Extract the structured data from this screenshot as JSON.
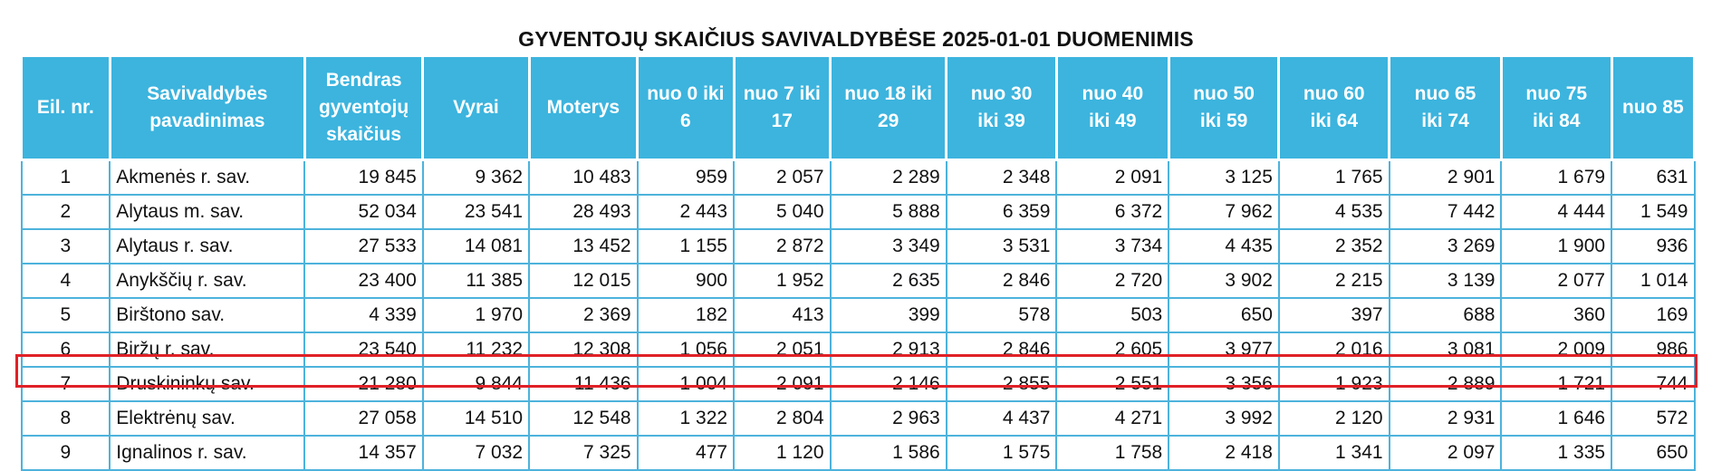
{
  "title": "GYVENTOJŲ SKAIČIUS SAVIVALDYBĖSE 2025-01-01 DUOMENIMIS",
  "colors": {
    "header_bg": "#3cb4de",
    "grid": "#4db3dc",
    "highlight": "#e02127"
  },
  "headers": [
    [
      "Eil. nr."
    ],
    [
      "Savivaldybės",
      "pavadinimas"
    ],
    [
      "Bendras",
      "gyventojų",
      "skaičius"
    ],
    [
      "Vyrai"
    ],
    [
      "Moterys"
    ],
    [
      "nuo 0 iki",
      "6"
    ],
    [
      "nuo 7 iki",
      "17"
    ],
    [
      "nuo 18 iki",
      "29"
    ],
    [
      "nuo 30",
      "iki 39"
    ],
    [
      "nuo 40",
      "iki 49"
    ],
    [
      "nuo 50",
      "iki 59"
    ],
    [
      "nuo 60",
      "iki 64"
    ],
    [
      "nuo 65",
      "iki 74"
    ],
    [
      "nuo 75",
      "iki 84"
    ],
    [
      "nuo 85"
    ]
  ],
  "rows": [
    [
      "1",
      "Akmenės r. sav.",
      "19 845",
      "9 362",
      "10 483",
      "959",
      "2 057",
      "2 289",
      "2 348",
      "2 091",
      "3 125",
      "1 765",
      "2 901",
      "1 679",
      "631"
    ],
    [
      "2",
      "Alytaus m. sav.",
      "52 034",
      "23 541",
      "28 493",
      "2 443",
      "5 040",
      "5 888",
      "6 359",
      "6 372",
      "7 962",
      "4 535",
      "7 442",
      "4 444",
      "1 549"
    ],
    [
      "3",
      "Alytaus r. sav.",
      "27 533",
      "14 081",
      "13 452",
      "1 155",
      "2 872",
      "3 349",
      "3 531",
      "3 734",
      "4 435",
      "2 352",
      "3 269",
      "1 900",
      "936"
    ],
    [
      "4",
      "Anykščių r. sav.",
      "23 400",
      "11 385",
      "12 015",
      "900",
      "1 952",
      "2 635",
      "2 846",
      "2 720",
      "3 902",
      "2 215",
      "3 139",
      "2 077",
      "1 014"
    ],
    [
      "5",
      "Birštono sav.",
      "4 339",
      "1 970",
      "2 369",
      "182",
      "413",
      "399",
      "578",
      "503",
      "650",
      "397",
      "688",
      "360",
      "169"
    ],
    [
      "6",
      "Biržų r. sav.",
      "23 540",
      "11 232",
      "12 308",
      "1 056",
      "2 051",
      "2 913",
      "2 846",
      "2 605",
      "3 977",
      "2 016",
      "3 081",
      "2 009",
      "986"
    ],
    [
      "7",
      "Druskininkų sav.",
      "21 280",
      "9 844",
      "11 436",
      "1 004",
      "2 091",
      "2 146",
      "2 855",
      "2 551",
      "3 356",
      "1 923",
      "2 889",
      "1 721",
      "744"
    ],
    [
      "8",
      "Elektrėnų sav.",
      "27 058",
      "14 510",
      "12 548",
      "1 322",
      "2 804",
      "2 963",
      "4 437",
      "4 271",
      "3 992",
      "2 120",
      "2 931",
      "1 646",
      "572"
    ],
    [
      "9",
      "Ignalinos r. sav.",
      "14 357",
      "7 032",
      "7 325",
      "477",
      "1 120",
      "1 586",
      "1 575",
      "1 758",
      "2 418",
      "1 341",
      "2 097",
      "1 335",
      "650"
    ]
  ],
  "highlighted_row": "7"
}
